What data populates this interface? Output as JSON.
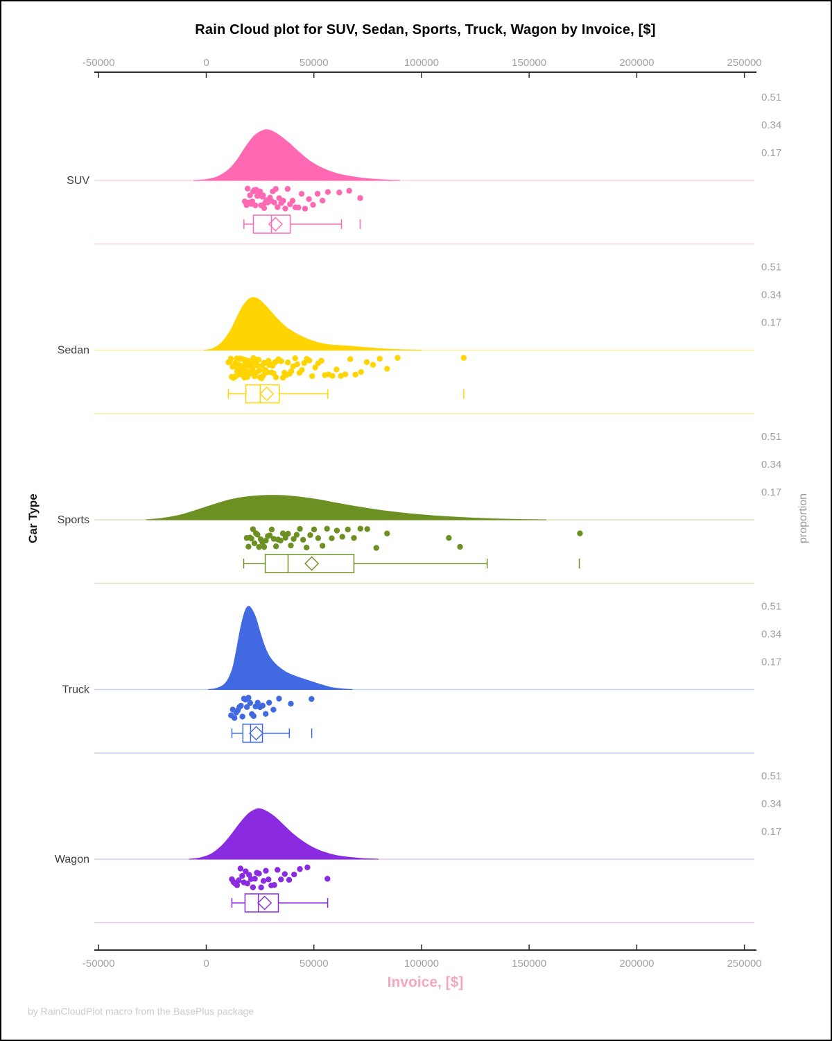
{
  "title": "Rain Cloud plot for SUV, Sedan, Sports, Truck, Wagon by Invoice, [$]",
  "footer": "by RainCloudPlot macro from the BasePlus package",
  "x_axis": {
    "label": "Invoice, [$]",
    "ticks": [
      -50000,
      0,
      50000,
      100000,
      150000,
      200000,
      250000
    ]
  },
  "y_axis_label": "Car Type",
  "right_axis": {
    "label": "proportion",
    "ticks": [
      0.17,
      0.34,
      0.51
    ]
  },
  "style_colors": {
    "axis_text": "#a1a1a1",
    "axis_line": "#2b2b2b",
    "band_label_text": "#3f3f3f",
    "x_axis_title_text": "#f5a7bb",
    "footer_text": "#cbcbcb"
  },
  "chart_data": {
    "type": "raincloud",
    "categories": [
      "SUV",
      "Sedan",
      "Sports",
      "Truck",
      "Wagon"
    ],
    "xlabel": "Invoice, [$]",
    "ylabel": "Car Type",
    "proportion_ticks": [
      0.17,
      0.34,
      0.51
    ],
    "xlim": [
      -50000,
      250000
    ],
    "groups": [
      {
        "name": "SUV",
        "color": "#ff69b4",
        "line_color": "#fbd3e5",
        "density": [
          [
            -6000,
            0
          ],
          [
            0,
            0.006
          ],
          [
            5000,
            0.022
          ],
          [
            10000,
            0.062
          ],
          [
            14000,
            0.12
          ],
          [
            18000,
            0.2
          ],
          [
            22000,
            0.27
          ],
          [
            26000,
            0.305
          ],
          [
            29000,
            0.31
          ],
          [
            33000,
            0.285
          ],
          [
            38000,
            0.235
          ],
          [
            43000,
            0.175
          ],
          [
            48000,
            0.12
          ],
          [
            54000,
            0.075
          ],
          [
            60000,
            0.045
          ],
          [
            67000,
            0.025
          ],
          [
            74000,
            0.012
          ],
          [
            82000,
            0.004
          ],
          [
            90000,
            0
          ]
        ],
        "box": {
          "low": 17500,
          "q1": 21900,
          "median": 30300,
          "q3": 39000,
          "high": 62800,
          "mean": 32200,
          "outliers": [
            71500
          ]
        },
        "points": [
          17900,
          18700,
          19200,
          19800,
          20300,
          20900,
          21400,
          21800,
          22300,
          22800,
          23200,
          23700,
          24100,
          24600,
          25000,
          25500,
          26000,
          26400,
          26900,
          27400,
          27900,
          28500,
          29000,
          29600,
          30200,
          30900,
          31600,
          32300,
          33100,
          33900,
          34800,
          35700,
          36700,
          37800,
          38900,
          40100,
          41400,
          42800,
          44300,
          45900,
          47700,
          49600,
          51700,
          54000,
          56500,
          61800,
          66400,
          71500
        ]
      },
      {
        "name": "Sedan",
        "color": "#ffd400",
        "line_color": "#fbeb9b",
        "density": [
          [
            -1000,
            0
          ],
          [
            3000,
            0.01
          ],
          [
            7000,
            0.045
          ],
          [
            11000,
            0.115
          ],
          [
            14000,
            0.195
          ],
          [
            17000,
            0.27
          ],
          [
            20000,
            0.315
          ],
          [
            22500,
            0.322
          ],
          [
            25000,
            0.305
          ],
          [
            29000,
            0.252
          ],
          [
            33000,
            0.192
          ],
          [
            37000,
            0.142
          ],
          [
            42000,
            0.1
          ],
          [
            47000,
            0.068
          ],
          [
            52000,
            0.046
          ],
          [
            57000,
            0.033
          ],
          [
            62000,
            0.028
          ],
          [
            67000,
            0.024
          ],
          [
            73000,
            0.017
          ],
          [
            81000,
            0.009
          ],
          [
            90000,
            0.003
          ],
          [
            100000,
            0
          ]
        ],
        "box": {
          "low": 10300,
          "q1": 18400,
          "median": 25100,
          "q3": 33900,
          "high": 56500,
          "mean": 28100,
          "outliers": [
            119600
          ]
        },
        "points": [
          10300,
          10900,
          11400,
          11800,
          12200,
          12600,
          12900,
          13200,
          13500,
          13800,
          14100,
          14400,
          14700,
          15000,
          15200,
          15500,
          15700,
          16000,
          16200,
          16500,
          16700,
          17000,
          17200,
          17500,
          17700,
          18000,
          18200,
          18500,
          18700,
          19000,
          19200,
          19500,
          19700,
          20000,
          20200,
          20500,
          20800,
          21000,
          21300,
          21600,
          21900,
          22200,
          22500,
          22800,
          23100,
          23400,
          23700,
          24000,
          24300,
          24600,
          25000,
          25300,
          25700,
          26000,
          26400,
          26800,
          27200,
          27600,
          28000,
          28400,
          28900,
          29300,
          29800,
          30300,
          30800,
          31300,
          31900,
          32400,
          33000,
          33600,
          34300,
          34900,
          35600,
          36300,
          37100,
          37900,
          38700,
          39500,
          40400,
          41300,
          42300,
          43300,
          44400,
          45500,
          46700,
          47900,
          49200,
          50600,
          52000,
          53500,
          55100,
          56800,
          58600,
          60500,
          62500,
          64600,
          66900,
          69300,
          71900,
          74600,
          77500,
          80600,
          84000,
          88900,
          119600
        ]
      },
      {
        "name": "Sports",
        "color": "#6d9023",
        "line_color": "#dce2c4",
        "density": [
          [
            -28000,
            0
          ],
          [
            -20000,
            0.01
          ],
          [
            -12000,
            0.03
          ],
          [
            -4000,
            0.062
          ],
          [
            4000,
            0.096
          ],
          [
            12000,
            0.126
          ],
          [
            20000,
            0.143
          ],
          [
            28000,
            0.15
          ],
          [
            36000,
            0.149
          ],
          [
            44000,
            0.139
          ],
          [
            52000,
            0.124
          ],
          [
            60000,
            0.104
          ],
          [
            68000,
            0.085
          ],
          [
            78000,
            0.064
          ],
          [
            88000,
            0.047
          ],
          [
            98000,
            0.033
          ],
          [
            110000,
            0.021
          ],
          [
            122000,
            0.012
          ],
          [
            134000,
            0.006
          ],
          [
            146000,
            0.002
          ],
          [
            158000,
            0
          ]
        ],
        "box": {
          "low": 17400,
          "q1": 27400,
          "median": 38000,
          "q3": 68600,
          "high": 130500,
          "mean": 49000,
          "outliers": [
            173300
          ]
        },
        "points": [
          18800,
          19600,
          20300,
          21000,
          21700,
          22400,
          23100,
          23800,
          24500,
          25300,
          26100,
          26900,
          27700,
          28600,
          29500,
          30400,
          31400,
          32400,
          33400,
          34500,
          35600,
          36800,
          38000,
          39300,
          40600,
          42000,
          43500,
          45000,
          46600,
          48300,
          50100,
          52000,
          54000,
          56100,
          58300,
          60700,
          63200,
          65800,
          68600,
          71600,
          74800,
          79000,
          84000,
          112700,
          117900,
          173600
        ]
      },
      {
        "name": "Truck",
        "color": "#4169e1",
        "line_color": "#c5d3f1",
        "density": [
          [
            1000,
            0
          ],
          [
            5000,
            0.008
          ],
          [
            9000,
            0.04
          ],
          [
            12000,
            0.12
          ],
          [
            14000,
            0.24
          ],
          [
            16000,
            0.38
          ],
          [
            18000,
            0.48
          ],
          [
            19500,
            0.51
          ],
          [
            21000,
            0.495
          ],
          [
            23000,
            0.44
          ],
          [
            25000,
            0.35
          ],
          [
            27000,
            0.27
          ],
          [
            29000,
            0.21
          ],
          [
            32000,
            0.158
          ],
          [
            35000,
            0.125
          ],
          [
            38000,
            0.1
          ],
          [
            42000,
            0.079
          ],
          [
            46000,
            0.061
          ],
          [
            50000,
            0.044
          ],
          [
            54000,
            0.027
          ],
          [
            58000,
            0.013
          ],
          [
            63000,
            0.004
          ],
          [
            68000,
            0
          ]
        ],
        "box": {
          "low": 11900,
          "q1": 17000,
          "median": 20600,
          "q3": 26100,
          "high": 38600,
          "mean": 23200,
          "outliers": [
            49000
          ]
        },
        "points": [
          11500,
          12300,
          13100,
          13900,
          14700,
          15400,
          16100,
          16800,
          17500,
          18200,
          18900,
          19600,
          20400,
          21200,
          22000,
          22900,
          23900,
          25000,
          26200,
          27600,
          29200,
          31200,
          33800,
          39300,
          48900
        ]
      },
      {
        "name": "Wagon",
        "color": "#8a2be2",
        "line_color": "#dfc9f4",
        "density": [
          [
            -8000,
            0
          ],
          [
            -3000,
            0.008
          ],
          [
            2000,
            0.03
          ],
          [
            7000,
            0.08
          ],
          [
            11000,
            0.14
          ],
          [
            15000,
            0.21
          ],
          [
            19000,
            0.272
          ],
          [
            22000,
            0.3
          ],
          [
            24500,
            0.31
          ],
          [
            28000,
            0.294
          ],
          [
            32000,
            0.258
          ],
          [
            36000,
            0.208
          ],
          [
            40000,
            0.158
          ],
          [
            45000,
            0.108
          ],
          [
            50000,
            0.069
          ],
          [
            55000,
            0.042
          ],
          [
            60000,
            0.024
          ],
          [
            66000,
            0.012
          ],
          [
            72000,
            0.005
          ],
          [
            80000,
            0
          ]
        ],
        "box": {
          "low": 11900,
          "q1": 18000,
          "median": 24200,
          "q3": 33500,
          "high": 56400,
          "mean": 27100,
          "outliers": []
        },
        "points": [
          11900,
          12700,
          13500,
          14300,
          15100,
          15900,
          16700,
          17500,
          18300,
          19100,
          19900,
          20800,
          21700,
          22600,
          23500,
          24500,
          25500,
          26600,
          27700,
          28900,
          30200,
          31600,
          33100,
          34700,
          36500,
          38500,
          40800,
          43500,
          47000,
          56300
        ]
      }
    ]
  }
}
